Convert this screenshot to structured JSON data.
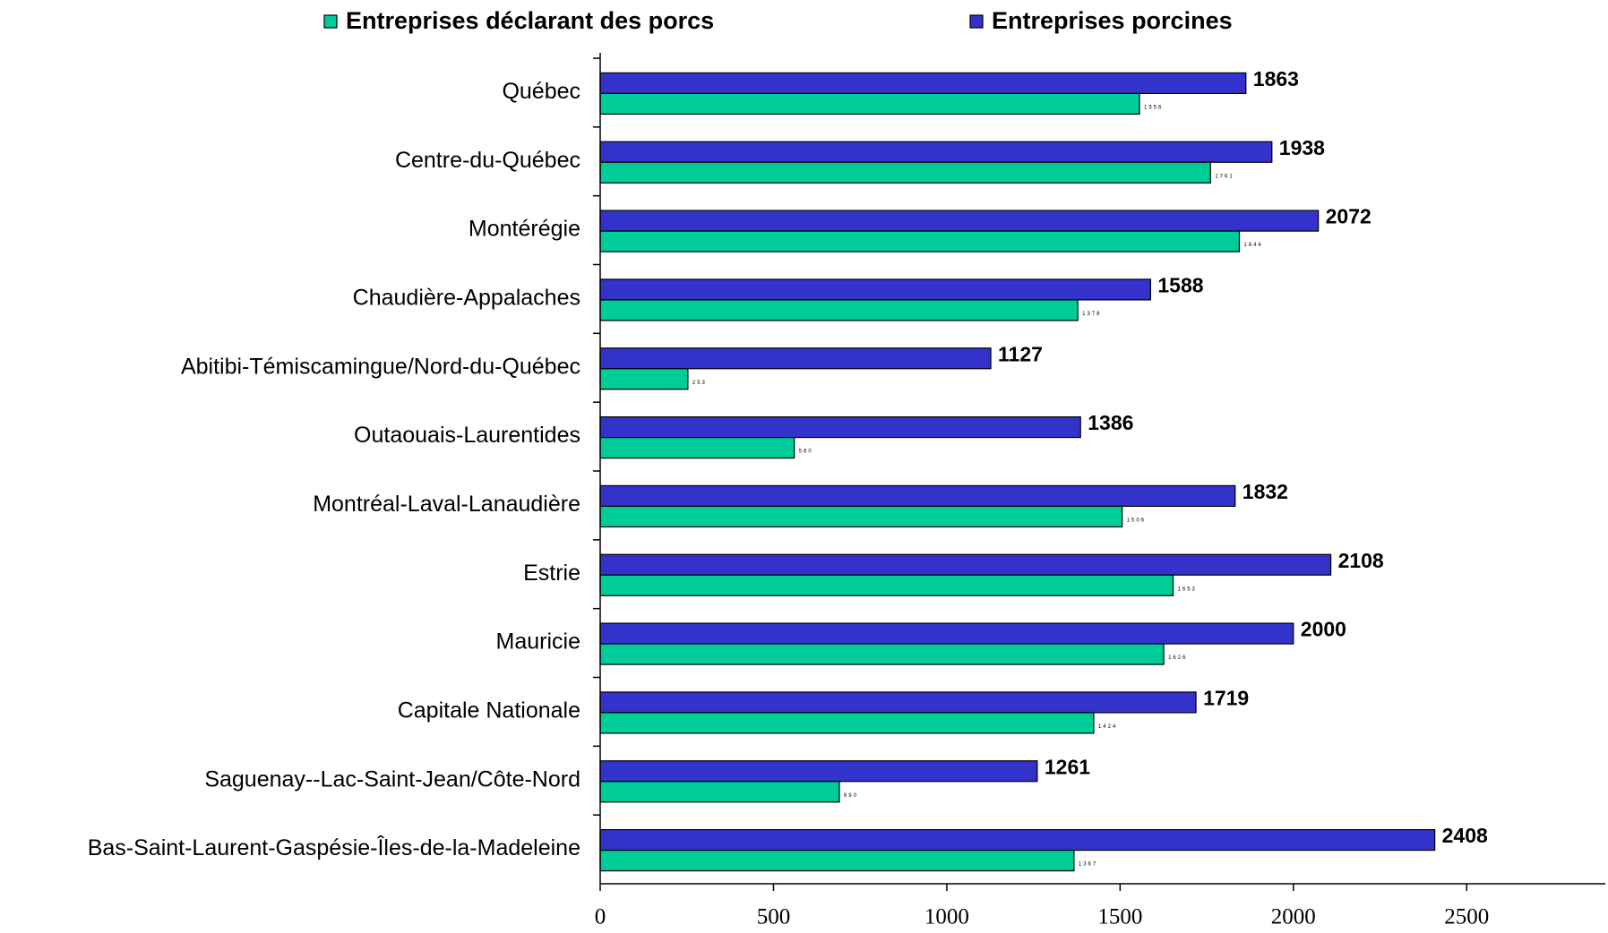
{
  "chart_data": {
    "type": "hbar",
    "categories": [
      "Québec",
      "Centre-du-Québec",
      "Montérégie",
      "Chaudière-Appalaches",
      "Abitibi-Témiscamingue/Nord-du-Québec",
      "Outaouais-Laurentides",
      "Montréal-Laval-Lanaudière",
      "Estrie",
      "Mauricie",
      "Capitale Nationale",
      "Saguenay--Lac-Saint-Jean/Côte-Nord",
      "Bas-Saint-Laurent-Gaspésie-Îles-de-la-Madeleine"
    ],
    "series": [
      {
        "name": "Entreprises porcines",
        "color": "#3333cc",
        "values": [
          1863,
          1938,
          2072,
          1588,
          1127,
          1386,
          1832,
          2108,
          2000,
          1719,
          1261,
          2408
        ]
      },
      {
        "name": "Entreprises déclarant des porcs",
        "color": "#00cc99",
        "values": [
          1556,
          1761,
          1844,
          1378,
          253,
          560,
          1506,
          1653,
          1626,
          1424,
          690,
          1367
        ]
      }
    ],
    "xlim": [
      0,
      2900
    ],
    "xticks": [
      0,
      500,
      1000,
      1500,
      2000,
      2500
    ]
  }
}
